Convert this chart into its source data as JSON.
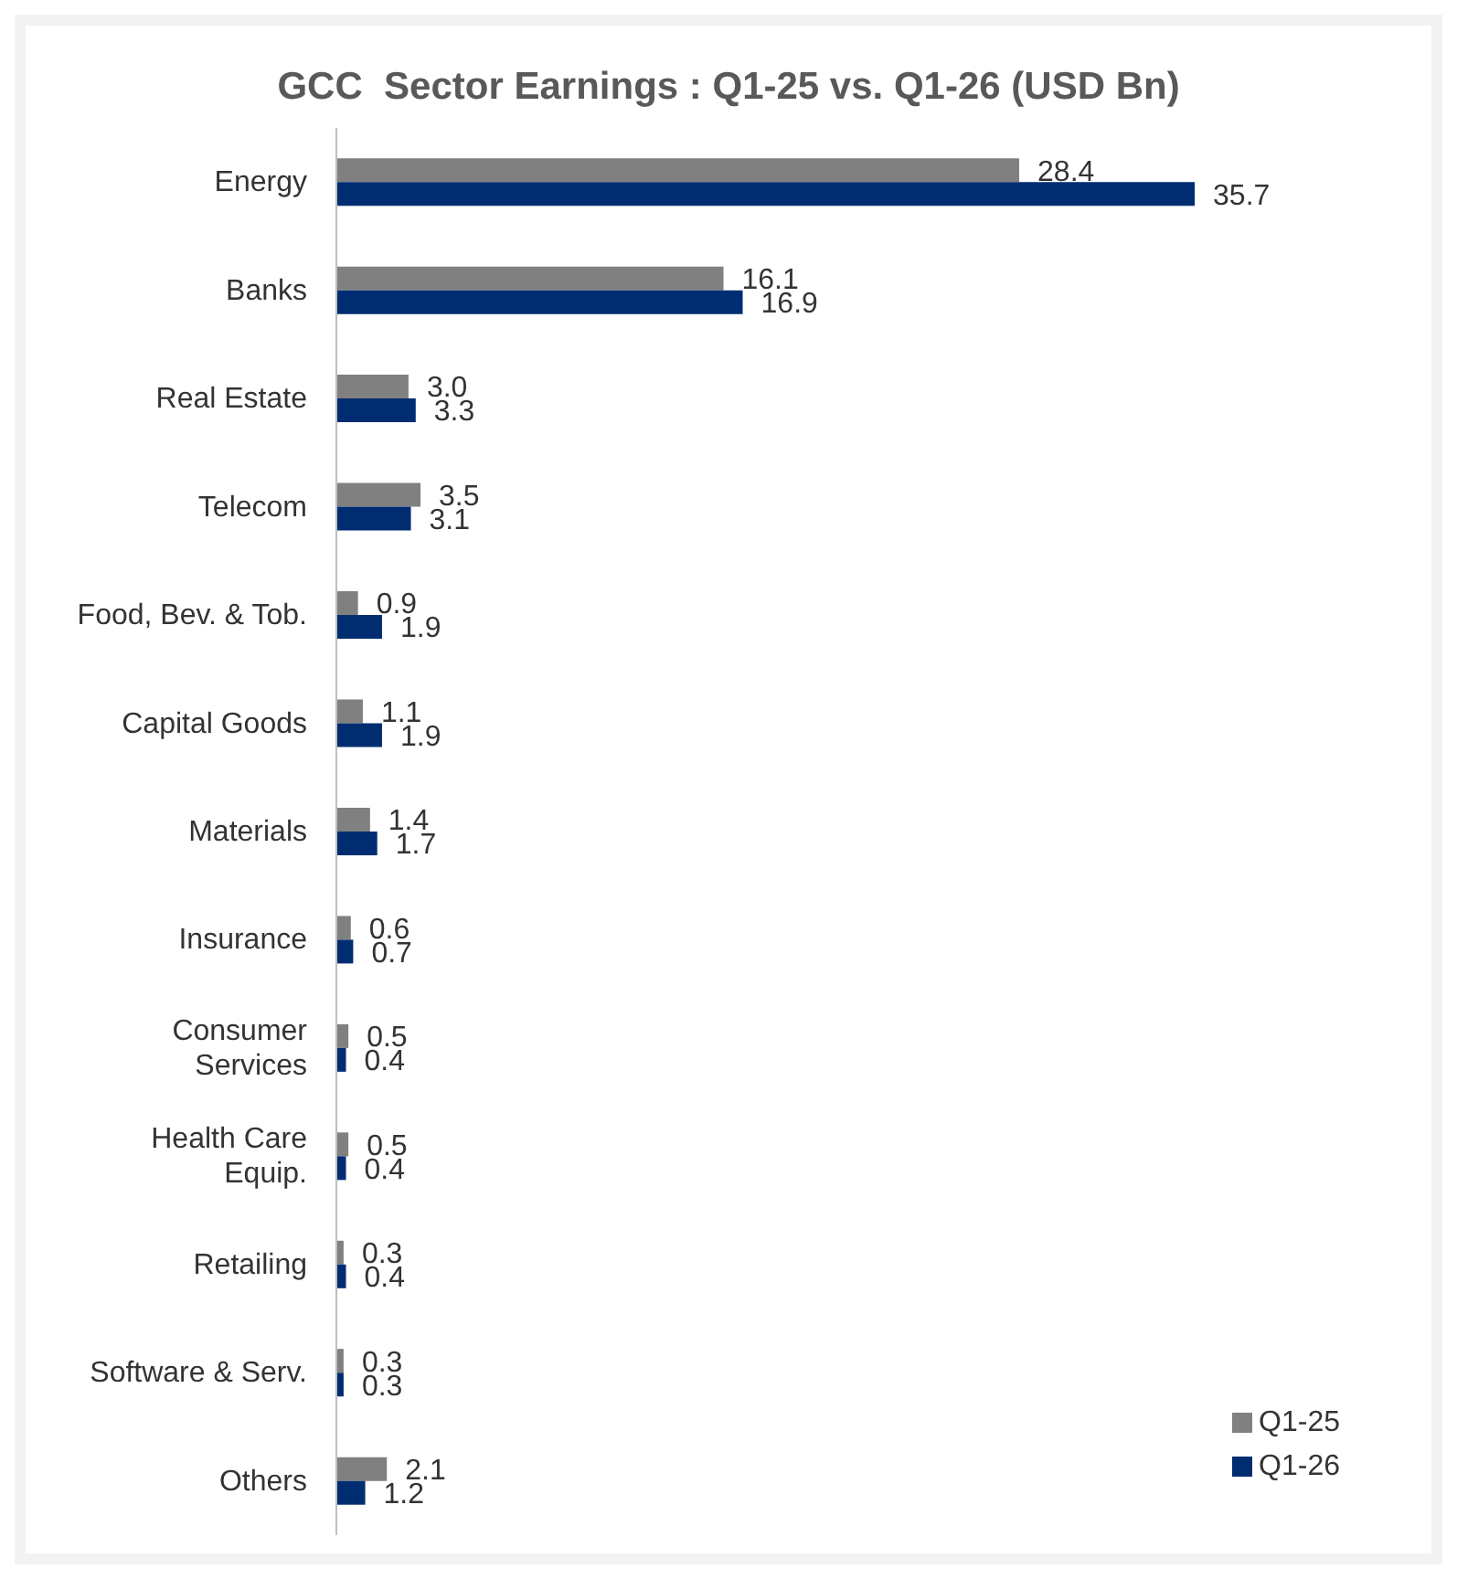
{
  "chart_data": {
    "type": "bar",
    "orientation": "horizontal",
    "title": "GCC  Sector Earnings : Q1-25 vs. Q1-26 (USD Bn)",
    "categories": [
      "Energy",
      "Banks",
      "Real Estate",
      "Telecom",
      "Food, Bev. & Tob.",
      "Capital Goods",
      "Materials",
      "Insurance",
      "Consumer Services",
      "Health Care Equip.",
      "Retailing",
      "Software & Serv.",
      "Others"
    ],
    "series": [
      {
        "name": "Q1-25",
        "color": "#808080",
        "values": [
          28.4,
          16.1,
          3.0,
          3.5,
          0.9,
          1.1,
          1.4,
          0.6,
          0.5,
          0.5,
          0.3,
          0.3,
          2.1
        ],
        "value_labels": [
          "28.4",
          "16.1",
          "3.0",
          "3.5",
          "0.9",
          "1.1",
          "1.4",
          "0.6",
          "0.5",
          "0.5",
          "0.3",
          "0.3",
          "2.1"
        ]
      },
      {
        "name": "Q1-26",
        "color": "#002d72",
        "values": [
          35.7,
          16.9,
          3.3,
          3.1,
          1.9,
          1.9,
          1.7,
          0.7,
          0.4,
          0.4,
          0.4,
          0.3,
          1.2
        ],
        "value_labels": [
          "35.7",
          "16.9",
          "3.3",
          "3.1",
          "1.9",
          "1.9",
          "1.7",
          "0.7",
          "0.4",
          "0.4",
          "0.4",
          "0.3",
          "1.2"
        ]
      }
    ],
    "tick_labels": "y",
    "legend": "bottom right"
  }
}
